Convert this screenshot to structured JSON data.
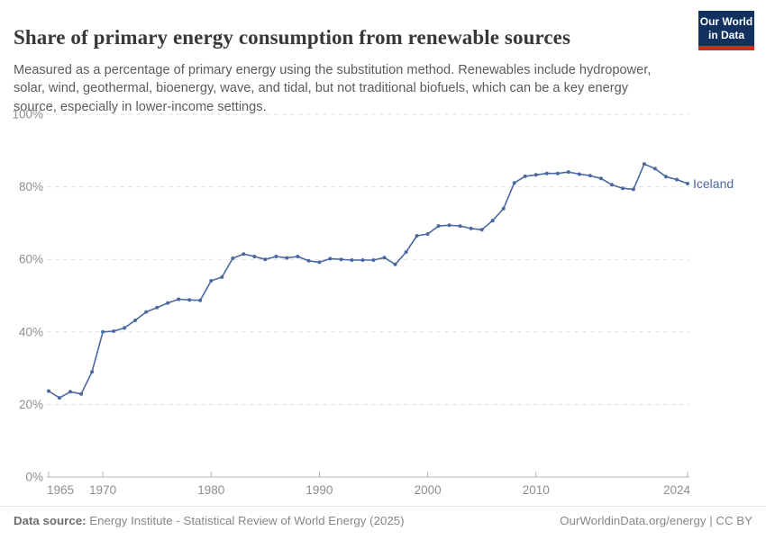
{
  "header": {
    "title": "Share of primary energy consumption from renewable sources",
    "subtitle": "Measured as a percentage of primary energy using the substitution method. Renewables include hydropower, solar, wind, geothermal, bioenergy, wave, and tidal, but not traditional biofuels, which can be a key energy source, especially in lower-income settings.",
    "logo": {
      "line1": "Our World",
      "line2": "in Data"
    }
  },
  "chart_data": {
    "type": "line",
    "title": "Share of primary energy consumption from renewable sources",
    "xlabel": "",
    "ylabel": "",
    "xlim": [
      1965,
      2024
    ],
    "ylim": [
      0,
      100
    ],
    "grid": "horizontal-dashed",
    "legend_position": "end-of-line-label",
    "ytick_values": [
      0,
      20,
      40,
      60,
      80,
      100
    ],
    "ytick_labels": [
      "0%",
      "20%",
      "40%",
      "60%",
      "80%",
      "100%"
    ],
    "xtick_values": [
      1965,
      1970,
      1980,
      1990,
      2000,
      2010,
      2024
    ],
    "xtick_labels": [
      "1965",
      "1970",
      "1980",
      "1990",
      "2000",
      "2010",
      "2024"
    ],
    "series": [
      {
        "name": "Iceland",
        "color": "#4a69a0",
        "x": [
          1965,
          1966,
          1967,
          1968,
          1969,
          1970,
          1971,
          1972,
          1973,
          1974,
          1975,
          1976,
          1977,
          1978,
          1979,
          1980,
          1981,
          1982,
          1983,
          1984,
          1985,
          1986,
          1987,
          1988,
          1989,
          1990,
          1991,
          1992,
          1993,
          1994,
          1995,
          1996,
          1997,
          1998,
          1999,
          2000,
          2001,
          2002,
          2003,
          2004,
          2005,
          2006,
          2007,
          2008,
          2009,
          2010,
          2011,
          2012,
          2013,
          2014,
          2015,
          2016,
          2017,
          2018,
          2019,
          2020,
          2021,
          2022,
          2023,
          2024
        ],
        "values": [
          23.7,
          21.8,
          23.5,
          22.9,
          29.0,
          40.0,
          40.2,
          41.1,
          43.2,
          45.5,
          46.7,
          48.0,
          49.0,
          48.8,
          48.7,
          54.1,
          55.1,
          60.3,
          61.5,
          60.8,
          60.0,
          60.8,
          60.4,
          60.8,
          59.6,
          59.2,
          60.2,
          60.0,
          59.8,
          59.8,
          59.8,
          60.5,
          58.6,
          62.0,
          66.5,
          67.0,
          69.2,
          69.4,
          69.2,
          68.5,
          68.2,
          70.7,
          74.0,
          81.1,
          82.9,
          83.3,
          83.7,
          83.7,
          84.1,
          83.5,
          83.1,
          82.3,
          80.6,
          79.6,
          79.3,
          86.3,
          85.0,
          82.8,
          82.0,
          80.9
        ]
      }
    ]
  },
  "footer": {
    "source_label": "Data source:",
    "source_text": " Energy Institute - Statistical Review of World Energy (2025)",
    "right_text": "OurWorldinData.org/energy | CC BY"
  },
  "colors": {
    "line": "#4a69a0",
    "grid": "#e0e0e0",
    "axis": "#b3b3b3",
    "tick_text": "#8e8e8e",
    "logo_bg": "#12315f",
    "logo_red": "#d42b21"
  }
}
